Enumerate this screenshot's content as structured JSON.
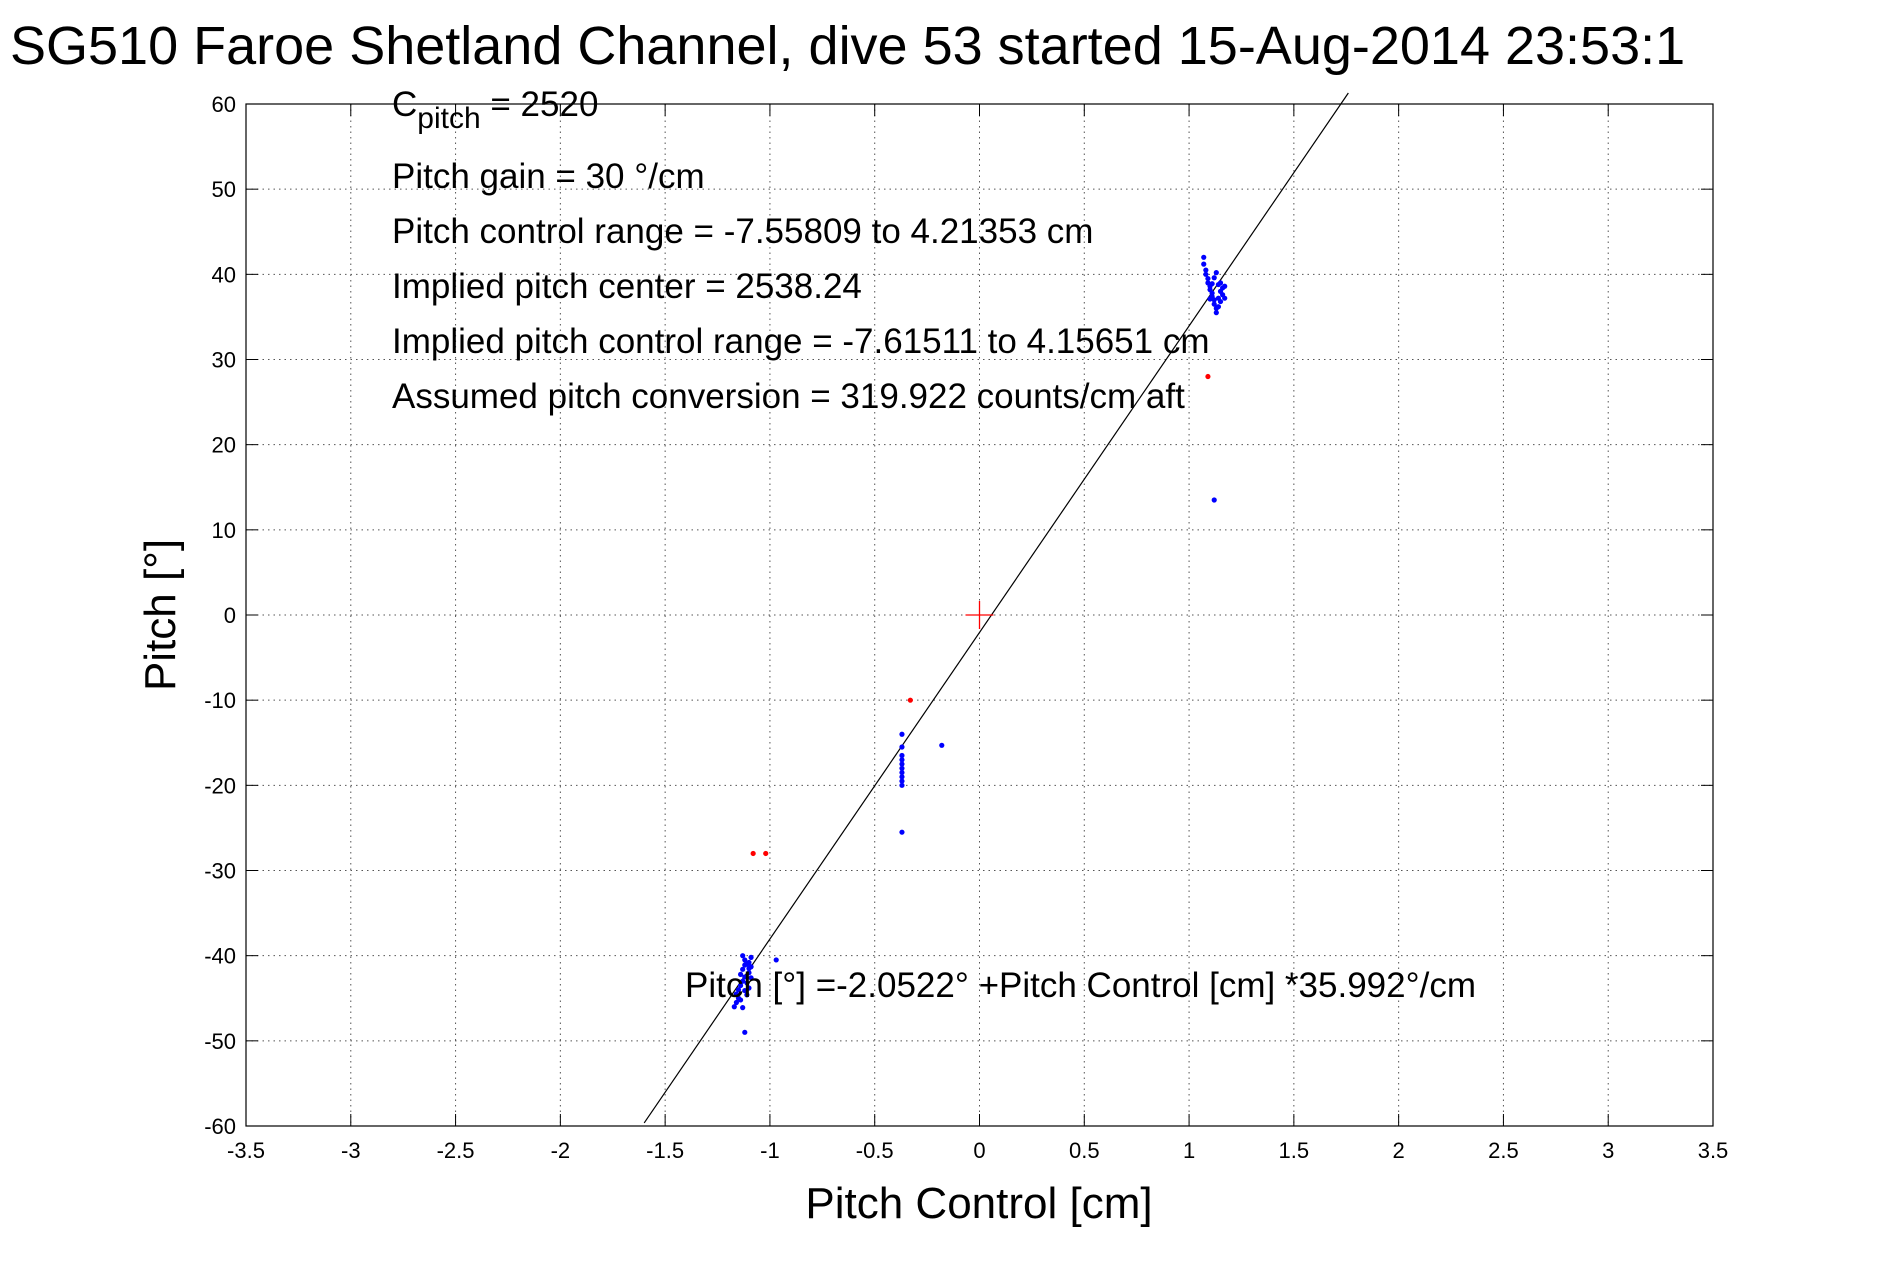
{
  "chart_data": {
    "type": "scatter",
    "title": "SG510 Faroe Shetland Channel, dive 53 started 15-Aug-2014 23:53:1",
    "xlabel": "Pitch Control [cm]",
    "ylabel": "Pitch [°]",
    "xlim": [
      -3.5,
      3.5
    ],
    "ylim": [
      -60,
      60
    ],
    "xticks": [
      -3.5,
      -3,
      -2.5,
      -2,
      -1.5,
      -1,
      -0.5,
      0,
      0.5,
      1,
      1.5,
      2,
      2.5,
      3,
      3.5
    ],
    "xtick_labels": [
      "-3.5",
      "-3",
      "-2.5",
      "-2",
      "-1.5",
      "-1",
      "-0.5",
      "0",
      "0.5",
      "1",
      "1.5",
      "2",
      "2.5",
      "3",
      "3.5"
    ],
    "yticks": [
      -60,
      -50,
      -40,
      -30,
      -20,
      -10,
      0,
      10,
      20,
      30,
      40,
      50,
      60
    ],
    "ytick_labels": [
      "-60",
      "-50",
      "-40",
      "-30",
      "-20",
      "-10",
      "0",
      "10",
      "20",
      "30",
      "40",
      "50",
      "60"
    ],
    "grid": "dotted",
    "fit_line": {
      "intercept": -2.0522,
      "slope": 35.992,
      "x_range": [
        -1.6,
        1.76
      ],
      "label": "Pitch [°] =-2.0522° +Pitch Control [cm] *35.992°/cm"
    },
    "center_marker": {
      "x": 0,
      "y": 0,
      "color": "#ff0000"
    },
    "annotations": {
      "c_pitch_main": "C",
      "c_pitch_sub": "pitch",
      "c_pitch_value": " = 2520",
      "lines": [
        "Pitch gain = 30 °/cm",
        "Pitch control range = -7.55809 to 4.21353 cm",
        "Implied pitch center = 2538.24",
        "Implied pitch control range = -7.61511 to 4.15651 cm",
        "Assumed pitch conversion = 319.922 counts/cm aft"
      ]
    },
    "series": [
      {
        "color": "#0000ff",
        "points": [
          [
            1.07,
            42
          ],
          [
            1.07,
            41.2
          ],
          [
            1.08,
            40.5
          ],
          [
            1.08,
            40
          ],
          [
            1.09,
            39.5
          ],
          [
            1.09,
            39
          ],
          [
            1.1,
            38.6
          ],
          [
            1.1,
            38.2
          ],
          [
            1.11,
            37.8
          ],
          [
            1.11,
            37.4
          ],
          [
            1.12,
            37
          ],
          [
            1.12,
            36.5
          ],
          [
            1.13,
            36
          ],
          [
            1.13,
            35.5
          ],
          [
            1.14,
            36.2
          ],
          [
            1.14,
            37.2
          ],
          [
            1.15,
            38
          ],
          [
            1.15,
            39
          ],
          [
            1.16,
            38.4
          ],
          [
            1.16,
            37.6
          ],
          [
            1.17,
            37.2
          ],
          [
            1.17,
            38.6
          ],
          [
            1.12,
            39.6
          ],
          [
            1.13,
            40.2
          ],
          [
            1.11,
            38.9
          ],
          [
            1.1,
            37.1
          ],
          [
            1.14,
            38.8
          ],
          [
            1.15,
            36.8
          ],
          [
            1.12,
            13.5
          ],
          [
            -0.37,
            -14
          ],
          [
            -0.37,
            -15.5
          ],
          [
            -0.37,
            -16.5
          ],
          [
            -0.37,
            -17
          ],
          [
            -0.37,
            -17.5
          ],
          [
            -0.37,
            -18
          ],
          [
            -0.37,
            -18.5
          ],
          [
            -0.37,
            -19
          ],
          [
            -0.37,
            -19.5
          ],
          [
            -0.37,
            -20
          ],
          [
            -0.37,
            -25.5
          ],
          [
            -0.18,
            -15.3
          ],
          [
            -1.13,
            -40
          ],
          [
            -1.12,
            -40.5
          ],
          [
            -1.11,
            -41
          ],
          [
            -1.1,
            -41.5
          ],
          [
            -1.1,
            -42
          ],
          [
            -1.09,
            -40.2
          ],
          [
            -1.09,
            -41.3
          ],
          [
            -1.12,
            -42.5
          ],
          [
            -1.13,
            -43
          ],
          [
            -1.14,
            -43.5
          ],
          [
            -1.15,
            -44
          ],
          [
            -1.16,
            -44.5
          ],
          [
            -1.15,
            -45
          ],
          [
            -1.16,
            -45.5
          ],
          [
            -1.17,
            -46
          ],
          [
            -1.14,
            -42.2
          ],
          [
            -1.13,
            -41.6
          ],
          [
            -1.11,
            -43.2
          ],
          [
            -1.12,
            -44.1
          ],
          [
            -1.1,
            -43.8
          ],
          [
            -1.11,
            -44.6
          ],
          [
            -1.14,
            -45.2
          ],
          [
            -1.13,
            -46.1
          ],
          [
            -1.12,
            -41.1
          ],
          [
            -1.09,
            -42.6
          ],
          [
            -1.1,
            -40.8
          ],
          [
            -0.97,
            -40.5
          ],
          [
            -1.12,
            -49
          ]
        ]
      },
      {
        "color": "#ff0000",
        "points": [
          [
            1.09,
            28
          ],
          [
            -0.33,
            -10
          ],
          [
            -1.08,
            -28
          ],
          [
            -1.02,
            -28
          ]
        ]
      }
    ]
  }
}
